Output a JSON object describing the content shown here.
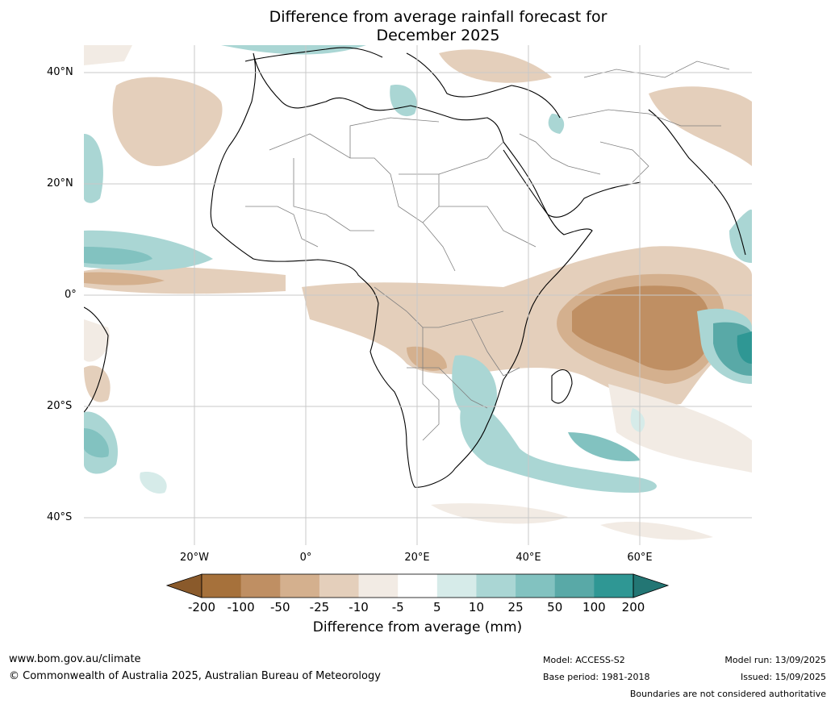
{
  "title_line1": "Difference from average rainfall forecast for",
  "title_line2": "December 2025",
  "lat_ticks": [
    "40°N",
    "20°N",
    "0°",
    "20°S",
    "40°S"
  ],
  "lon_ticks": [
    "20°W",
    "0°",
    "20°E",
    "40°E",
    "60°E"
  ],
  "colorbar": {
    "title": "Difference from average (mm)",
    "labels": [
      "-200",
      "-100",
      "-50",
      "-25",
      "-10",
      "-5",
      "5",
      "10",
      "25",
      "50",
      "100",
      "200"
    ],
    "colors": [
      "#a6713b",
      "#bf8f63",
      "#d4b08e",
      "#e4cfbb",
      "#f2ebe4",
      "#ffffff",
      "#d6ebe9",
      "#aad6d4",
      "#82c2c0",
      "#59a9a7",
      "#2f9794"
    ],
    "low_extend_color": "#8a5a2b",
    "high_extend_color": "#237674"
  },
  "footer": {
    "url": "www.bom.gov.au/climate",
    "copyright": "© Commonwealth of Australia 2025, Australian Bureau of Meteorology",
    "model": "Model: ACCESS-S2",
    "base_period": "Base period: 1981-2018",
    "model_run": "Model run: 13/09/2025",
    "issued": "Issued: 15/09/2025",
    "disclaimer": "Boundaries are not considered authoritative"
  }
}
